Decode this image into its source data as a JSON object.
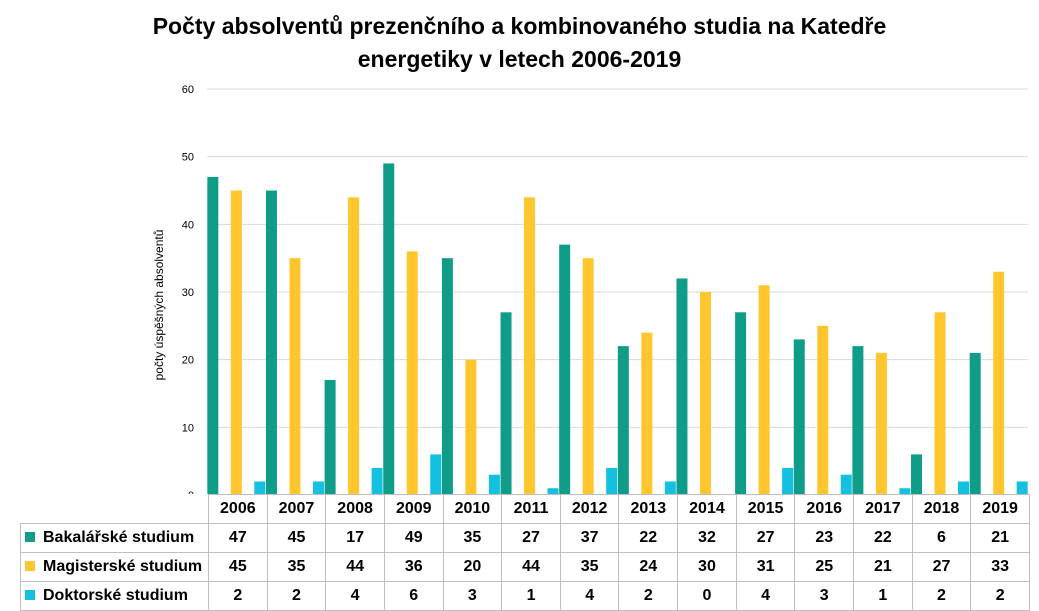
{
  "chart_data": {
    "type": "bar",
    "title_lines": [
      "Počty absolventů prezenčního a kombinovaného studia na Katedře",
      "energetiky v letech 2006-2019"
    ],
    "ylabel": "počty úspěšných absolventů",
    "ylim": [
      0,
      60
    ],
    "yticks": [
      "0",
      "10",
      "20",
      "30",
      "40",
      "50",
      "60"
    ],
    "grid": true,
    "legend": "data-table",
    "categories": [
      "2006",
      "2007",
      "2008",
      "2009",
      "2010",
      "2011",
      "2012",
      "2013",
      "2014",
      "2015",
      "2016",
      "2017",
      "2018",
      "2019"
    ],
    "series": [
      {
        "name": "Bakalářské studium",
        "color": "#0f9d8a",
        "values": [
          47,
          45,
          17,
          49,
          35,
          27,
          37,
          22,
          32,
          27,
          23,
          22,
          6,
          21
        ]
      },
      {
        "name": "Magisterské studium",
        "color": "#ffc62e",
        "values": [
          45,
          35,
          44,
          36,
          20,
          44,
          35,
          24,
          30,
          31,
          25,
          21,
          27,
          33
        ]
      },
      {
        "name": "Doktorské studium",
        "color": "#14c0e0",
        "values": [
          2,
          2,
          4,
          6,
          3,
          1,
          4,
          2,
          0,
          4,
          3,
          1,
          2,
          2
        ]
      }
    ]
  }
}
